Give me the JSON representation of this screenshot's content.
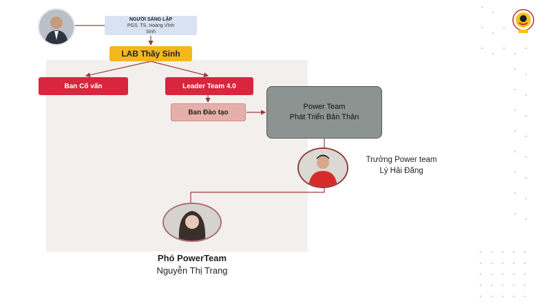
{
  "founder": {
    "title": "NGƯỜI SÁNG LẬP",
    "name_line1": "PGS. TS. Hoàng Vĩnh",
    "name_line2": "Sinh"
  },
  "lab": {
    "label": "LAB Thầy Sinh"
  },
  "board_advisors": {
    "label": "Ban Cố vấn"
  },
  "leader_team": {
    "label": "Leader Team 4.0"
  },
  "training_board": {
    "label": "Ban Đào tạo"
  },
  "power_team": {
    "line1": "Power Team",
    "line2": "Phát Triển Bản Thân"
  },
  "leader": {
    "title": "Trưởng Power team",
    "name": "Lý Hải Đăng"
  },
  "deputy": {
    "title": "Phó PowerTeam",
    "name": "Nguyễn Thị Trang"
  },
  "colors": {
    "accent_red": "#d7263d",
    "accent_yellow": "#f4b81d",
    "connector": "#9e3a3a"
  },
  "icons": [
    "founder-avatar",
    "leader-avatar",
    "deputy-avatar",
    "institution-logo"
  ]
}
